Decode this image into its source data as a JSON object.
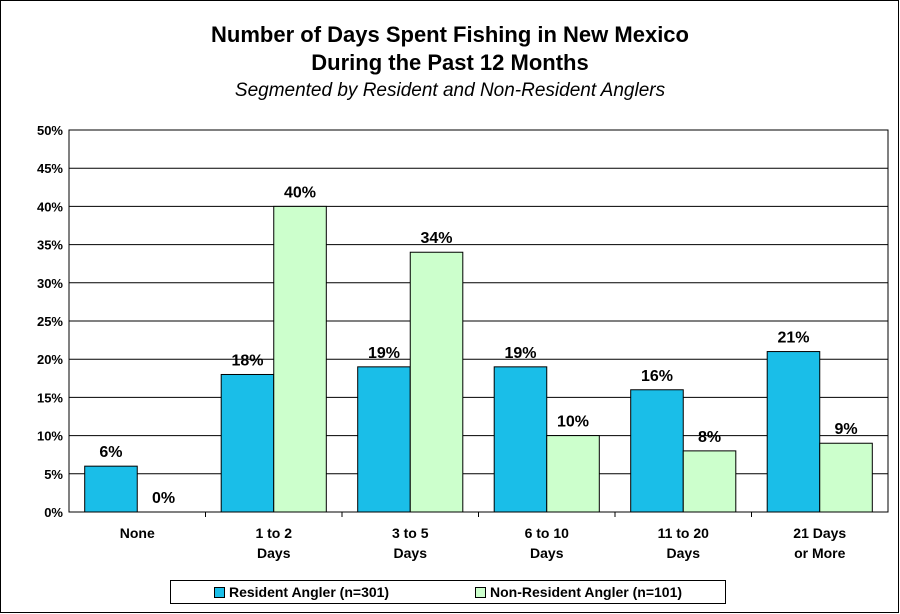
{
  "chart_data": {
    "type": "bar",
    "title_line1": "Number of Days Spent Fishing in New Mexico",
    "title_line2": "During the Past 12 Months",
    "subtitle": "Segmented by Resident and Non-Resident Anglers",
    "categories": [
      [
        "None"
      ],
      [
        "1 to 2",
        "Days"
      ],
      [
        "3 to 5",
        "Days"
      ],
      [
        "6 to 10",
        "Days"
      ],
      [
        "11 to 20",
        "Days"
      ],
      [
        "21 Days",
        "or More"
      ]
    ],
    "series": [
      {
        "name": "Resident Angler (n=301)",
        "values": [
          6,
          18,
          19,
          19,
          16,
          21
        ],
        "labels": [
          "6%",
          "18%",
          "19%",
          "19%",
          "16%",
          "21%"
        ],
        "color": "#1ABEE8"
      },
      {
        "name": "Non-Resident Angler (n=101)",
        "values": [
          0,
          40,
          34,
          10,
          8,
          9
        ],
        "labels": [
          "0%",
          "40%",
          "34%",
          "10%",
          "8%",
          "9%"
        ],
        "color": "#CCFFCC"
      }
    ],
    "ylim": [
      0,
      50
    ],
    "yticks": [
      "0%",
      "5%",
      "10%",
      "15%",
      "20%",
      "25%",
      "30%",
      "35%",
      "40%",
      "45%",
      "50%"
    ],
    "grid": true,
    "legend_position": "bottom"
  }
}
